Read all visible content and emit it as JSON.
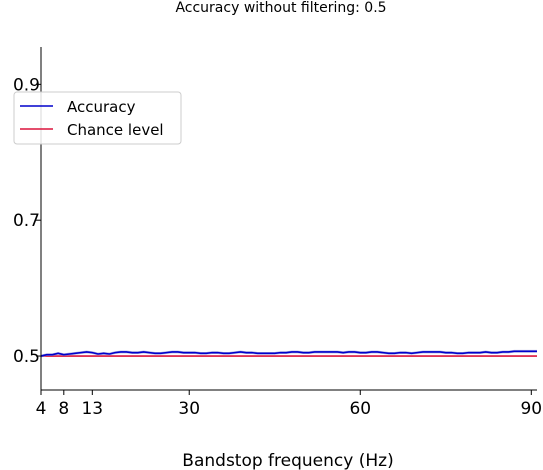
{
  "chart_data": {
    "type": "line",
    "title": "Accuracy without filtering: 0.5",
    "xlabel": "Bandstop frequency (Hz)",
    "ylabel": "",
    "xlim": [
      4,
      91
    ],
    "ylim": [
      0.45,
      0.955
    ],
    "xticks": [
      4,
      8,
      13,
      30,
      60,
      90
    ],
    "xtick_labels": [
      "4",
      "8",
      "13",
      "30",
      "60",
      "90"
    ],
    "yticks": [
      0.5,
      0.7,
      0.9
    ],
    "ytick_labels": [
      "0.5",
      "0.7",
      "0.9"
    ],
    "grid": false,
    "legend_position": "top-left",
    "series": [
      {
        "name": "Accuracy",
        "color": "#0000cc",
        "band_color": "#9a9ad6",
        "x": [
          4,
          5,
          6,
          7,
          8,
          9,
          10,
          11,
          12,
          13,
          14,
          15,
          16,
          17,
          18,
          19,
          20,
          21,
          22,
          23,
          24,
          25,
          26,
          27,
          28,
          29,
          30,
          31,
          32,
          33,
          34,
          35,
          36,
          37,
          38,
          39,
          40,
          41,
          42,
          43,
          44,
          45,
          46,
          47,
          48,
          49,
          50,
          51,
          52,
          53,
          54,
          55,
          56,
          57,
          58,
          59,
          60,
          61,
          62,
          63,
          64,
          65,
          66,
          67,
          68,
          69,
          70,
          71,
          72,
          73,
          74,
          75,
          76,
          77,
          78,
          79,
          80,
          81,
          82,
          83,
          84,
          85,
          86,
          87,
          88,
          89,
          90,
          91
        ],
        "values": [
          0.5,
          0.502,
          0.502,
          0.504,
          0.502,
          0.503,
          0.504,
          0.505,
          0.506,
          0.505,
          0.503,
          0.504,
          0.503,
          0.505,
          0.506,
          0.506,
          0.505,
          0.505,
          0.506,
          0.505,
          0.504,
          0.504,
          0.505,
          0.506,
          0.506,
          0.505,
          0.505,
          0.505,
          0.504,
          0.504,
          0.505,
          0.505,
          0.504,
          0.504,
          0.505,
          0.506,
          0.505,
          0.505,
          0.504,
          0.504,
          0.504,
          0.504,
          0.505,
          0.505,
          0.506,
          0.506,
          0.505,
          0.505,
          0.506,
          0.506,
          0.506,
          0.506,
          0.506,
          0.505,
          0.506,
          0.506,
          0.505,
          0.505,
          0.506,
          0.506,
          0.505,
          0.504,
          0.504,
          0.505,
          0.505,
          0.504,
          0.505,
          0.506,
          0.506,
          0.506,
          0.506,
          0.505,
          0.505,
          0.504,
          0.504,
          0.505,
          0.505,
          0.505,
          0.506,
          0.505,
          0.505,
          0.506,
          0.506,
          0.507,
          0.507,
          0.507,
          0.507,
          0.507
        ],
        "band_halfwidth": 0.002
      },
      {
        "name": "Chance level",
        "color": "#dc143c",
        "x": [
          4,
          91
        ],
        "values": [
          0.5,
          0.5
        ]
      }
    ]
  }
}
